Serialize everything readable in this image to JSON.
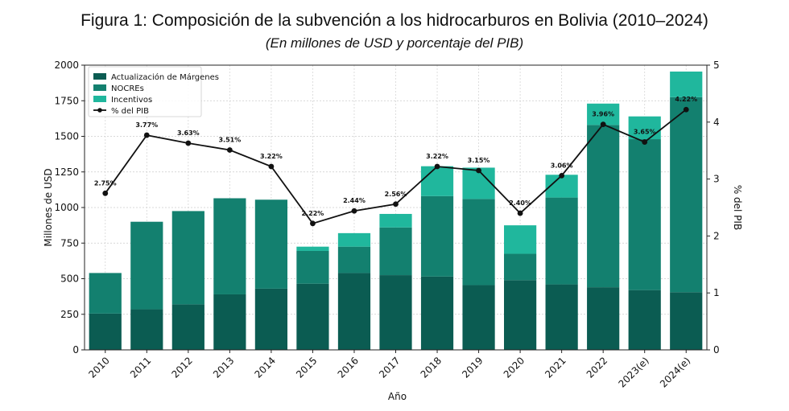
{
  "chart_data": {
    "type": "bar",
    "title": "Figura 1: Composición de la subvención a los hidrocarburos en Bolivia (2010–2024)",
    "subtitle": "(En millones de USD y porcentaje del PIB)",
    "xlabel": "Año",
    "ylabel": "Millones de USD",
    "y2label": "% del PIB",
    "categories": [
      "2010",
      "2011",
      "2012",
      "2013",
      "2014",
      "2015",
      "2016",
      "2017",
      "2018",
      "2019",
      "2020",
      "2021",
      "2022",
      "2023(e)",
      "2024(e)"
    ],
    "ylim": [
      0,
      2000
    ],
    "yticks": [
      0,
      250,
      500,
      750,
      1000,
      1250,
      1500,
      1750,
      2000
    ],
    "y2lim": [
      0,
      5
    ],
    "y2ticks": [
      0,
      1,
      2,
      3,
      4,
      5
    ],
    "grid": true,
    "legend_position": "top-left",
    "stacked": true,
    "series": [
      {
        "name": "Actualización de Márgenes",
        "axis": "left",
        "color": "#0b5c52",
        "values": [
          255,
          285,
          320,
          390,
          430,
          465,
          540,
          525,
          515,
          455,
          490,
          460,
          440,
          420,
          405
        ]
      },
      {
        "name": "NOCREs",
        "axis": "left",
        "color": "#13806f",
        "values": [
          285,
          615,
          655,
          675,
          625,
          230,
          185,
          335,
          565,
          605,
          185,
          610,
          1140,
          1060,
          1370
        ]
      },
      {
        "name": "Incentivos",
        "axis": "left",
        "color": "#20b79d",
        "values": [
          0,
          0,
          0,
          0,
          0,
          30,
          95,
          95,
          210,
          220,
          200,
          160,
          150,
          160,
          180
        ]
      },
      {
        "name": "% del PIB",
        "axis": "right",
        "type": "line",
        "color": "#111111",
        "values": [
          2.75,
          3.77,
          3.63,
          3.51,
          3.22,
          2.22,
          2.44,
          2.56,
          3.22,
          3.15,
          2.4,
          3.06,
          3.96,
          3.65,
          4.22
        ],
        "labels": [
          "2.75%",
          "3.77%",
          "3.63%",
          "3.51%",
          "3.22%",
          "2.22%",
          "2.44%",
          "2.56%",
          "3.22%",
          "3.15%",
          "2.40%",
          "3.06%",
          "3.96%",
          "3.65%",
          "4.22%"
        ]
      }
    ]
  }
}
